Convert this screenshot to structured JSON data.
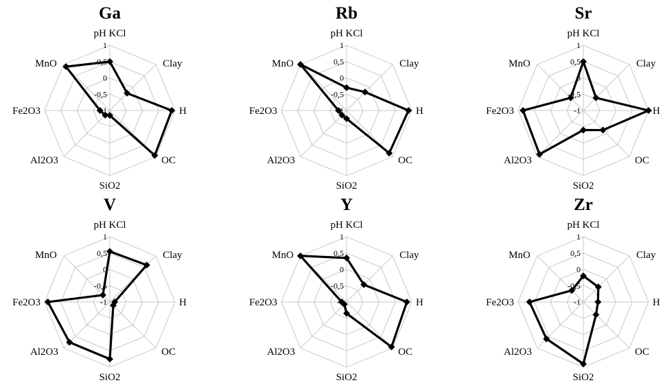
{
  "chart_data": [
    {
      "type": "radar",
      "title": "Ga",
      "axes": [
        "pH KCl",
        "Clay",
        "H",
        "OC",
        "SiO2",
        "Al2O3",
        "Fe2O3",
        "MnO"
      ],
      "rlim": [
        -1,
        1
      ],
      "ticks": [
        "1",
        "0,5",
        "0",
        "-0,5",
        "-1"
      ],
      "grid": true,
      "series": [
        {
          "values": [
            0.5,
            -0.25,
            0.9,
            0.95,
            -0.85,
            -0.8,
            -0.7,
            0.9
          ]
        }
      ]
    },
    {
      "type": "radar",
      "title": "Rb",
      "axes": [
        "pH KCl",
        "Clay",
        "H",
        "OC",
        "SiO2",
        "Al2O3",
        "Fe2O3",
        "MnO"
      ],
      "rlim": [
        -1,
        1
      ],
      "ticks": [
        "1",
        "0,5",
        "0",
        "-0,5",
        "-1"
      ],
      "grid": true,
      "series": [
        {
          "values": [
            -0.3,
            -0.2,
            0.9,
            0.85,
            -0.75,
            -0.8,
            -0.75,
            1.0
          ]
        }
      ]
    },
    {
      "type": "radar",
      "title": "Sr",
      "axes": [
        "pH KCl",
        "Clay",
        "H",
        "OC",
        "SiO2",
        "Al2O3",
        "Fe2O3",
        "MnO"
      ],
      "rlim": [
        -1,
        1
      ],
      "ticks": [
        "1",
        "0,5",
        "0",
        "-0,5",
        "-1"
      ],
      "grid": true,
      "series": [
        {
          "values": [
            0.5,
            -0.45,
            1.0,
            -0.15,
            -0.4,
            0.9,
            0.85,
            -0.45
          ]
        }
      ]
    },
    {
      "type": "radar",
      "title": "V",
      "axes": [
        "pH KCl",
        "Clay",
        "H",
        "OC",
        "SiO2",
        "Al2O3",
        "Fe2O3",
        "MnO"
      ],
      "rlim": [
        -1,
        1
      ],
      "ticks": [
        "1",
        "0,5",
        "0",
        "-0,5",
        "-1"
      ],
      "grid": true,
      "series": [
        {
          "values": [
            0.55,
            0.6,
            -0.85,
            -0.85,
            0.75,
            0.75,
            0.9,
            -0.7
          ]
        }
      ]
    },
    {
      "type": "radar",
      "title": "Y",
      "axes": [
        "pH KCl",
        "Clay",
        "H",
        "OC",
        "SiO2",
        "Al2O3",
        "Fe2O3",
        "MnO"
      ],
      "rlim": [
        -1,
        1
      ],
      "ticks": [
        "1",
        "0,5",
        "0",
        "-0,5",
        "-1"
      ],
      "grid": true,
      "series": [
        {
          "values": [
            0.35,
            -0.25,
            0.85,
            0.95,
            -0.65,
            -0.9,
            -0.85,
            1.0
          ]
        }
      ]
    },
    {
      "type": "radar",
      "title": "Zr",
      "axes": [
        "pH KCl",
        "Clay",
        "H",
        "OC",
        "SiO2",
        "Al2O3",
        "Fe2O3",
        "MnO"
      ],
      "rlim": [
        -1,
        1
      ],
      "ticks": [
        "1",
        "0,5",
        "0",
        "-0,5",
        "-1"
      ],
      "grid": true,
      "series": [
        {
          "values": [
            -0.2,
            -0.35,
            -0.55,
            -0.45,
            0.9,
            0.6,
            0.65,
            -0.5
          ]
        }
      ]
    }
  ]
}
